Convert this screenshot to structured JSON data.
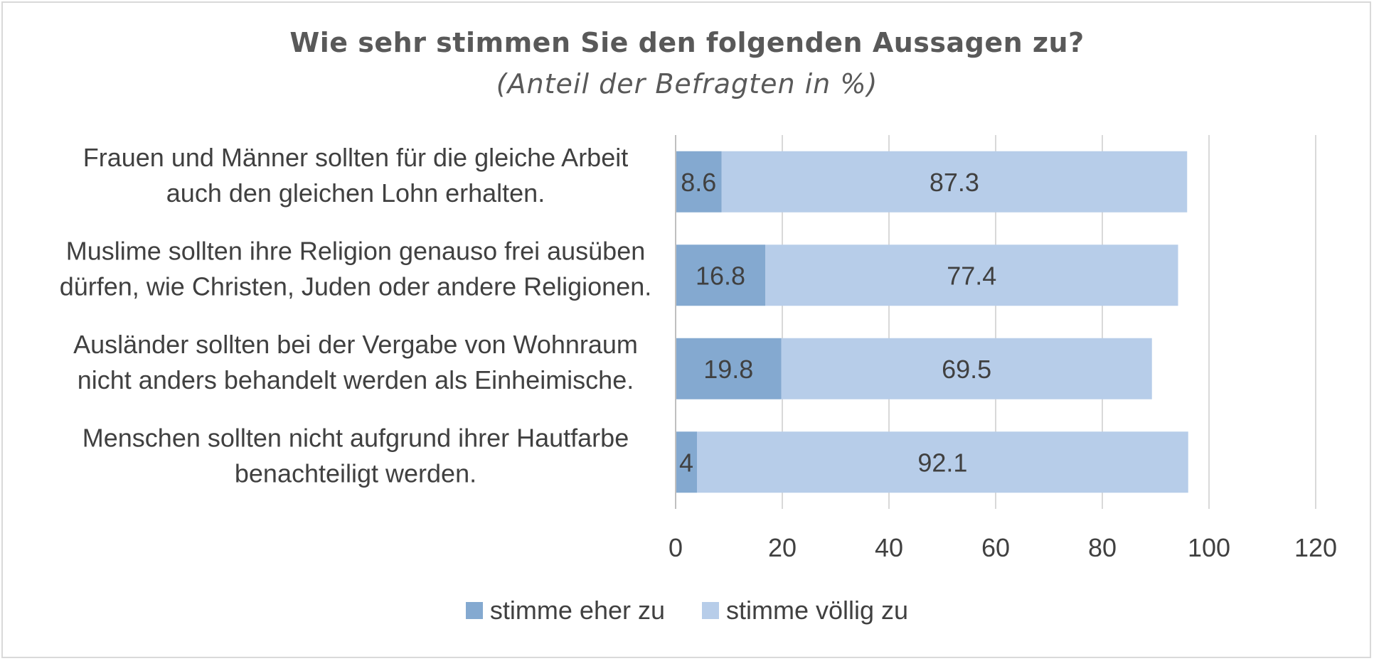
{
  "chart_data": {
    "type": "bar",
    "orientation": "horizontal",
    "stacked": true,
    "title": "Wie sehr stimmen Sie den folgenden Aussagen zu?",
    "subtitle": "(Anteil der Befragten in %)",
    "categories": [
      [
        "Frauen und Männer sollten für die gleiche Arbeit",
        "auch den gleichen Lohn erhalten."
      ],
      [
        "Muslime sollten ihre Religion genauso frei ausüben",
        "dürfen, wie Christen, Juden oder andere Religionen."
      ],
      [
        "Ausländer sollten bei der Vergabe von Wohnraum",
        "nicht anders behandelt werden als Einheimische."
      ],
      [
        "Menschen sollten nicht aufgrund ihrer Hautfarbe",
        "benachteiligt werden."
      ]
    ],
    "series": [
      {
        "name": "stimme eher zu",
        "color": "#84a9d0",
        "values": [
          8.6,
          16.8,
          19.8,
          4
        ]
      },
      {
        "name": "stimme völlig zu",
        "color": "#b7cde9",
        "values": [
          87.3,
          77.4,
          69.5,
          92.1
        ]
      }
    ],
    "xlim": [
      0,
      120
    ],
    "xticks": [
      "0",
      "20",
      "40",
      "60",
      "80",
      "100",
      "120"
    ],
    "grid": true,
    "legend_position": "bottom"
  }
}
